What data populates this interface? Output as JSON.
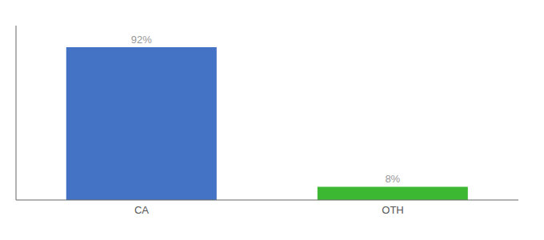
{
  "chart_data": {
    "type": "bar",
    "categories": [
      "CA",
      "OTH"
    ],
    "values": [
      92,
      8
    ],
    "value_labels": [
      "92%",
      "8%"
    ],
    "colors": [
      "#4472c4",
      "#3cb832"
    ],
    "ylim": [
      0,
      105
    ],
    "data_labels": true,
    "tick_labels": "x"
  }
}
